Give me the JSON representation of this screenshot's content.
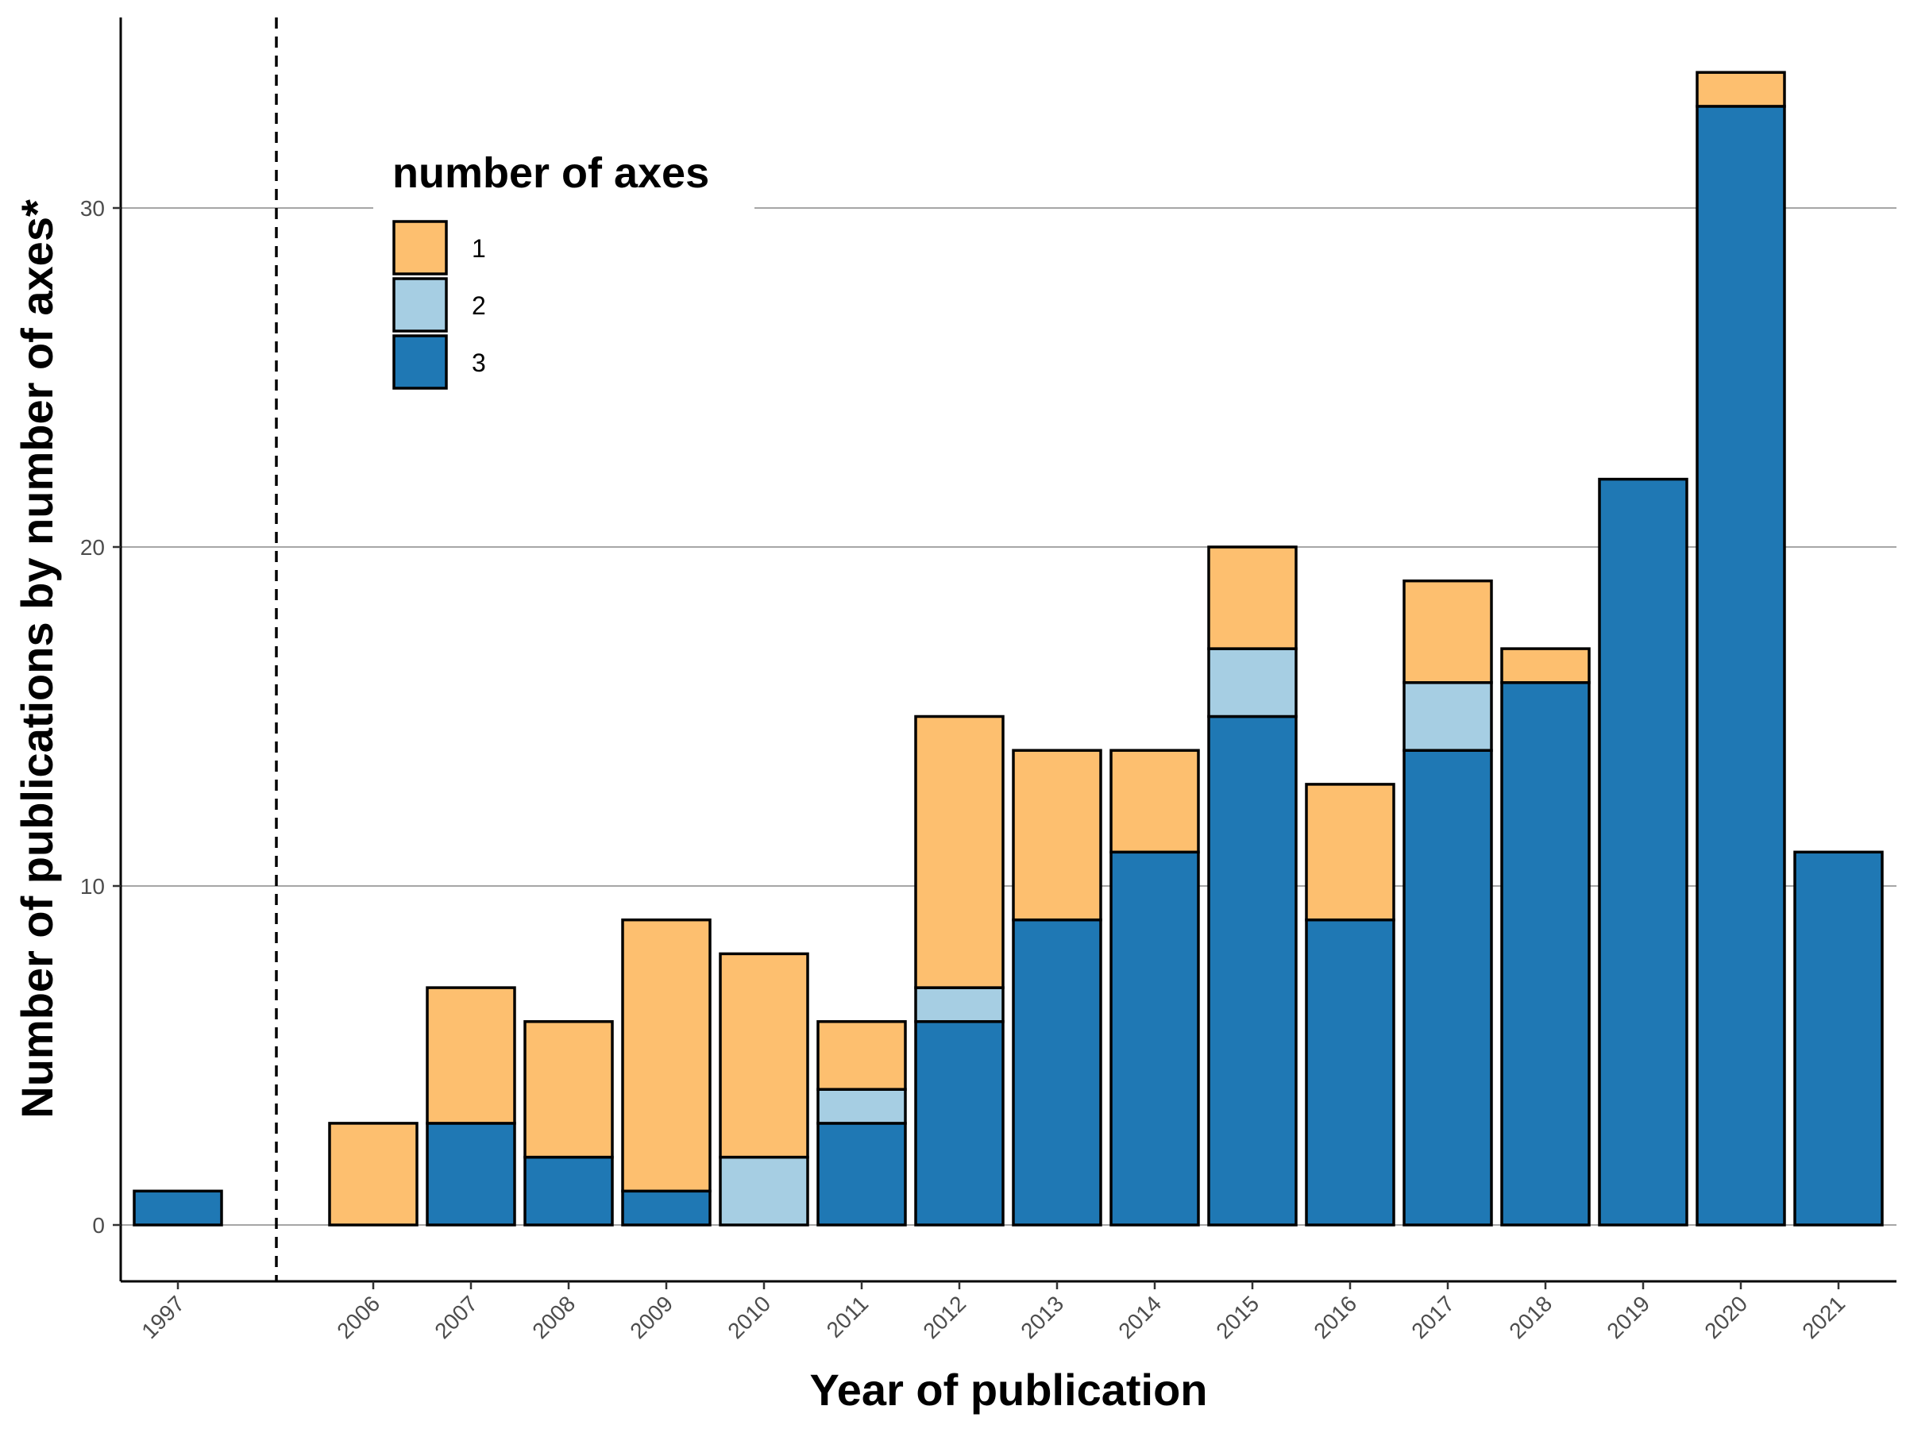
{
  "chart_data": {
    "type": "bar",
    "stacked": true,
    "categories": [
      "1997",
      "2006",
      "2007",
      "2008",
      "2009",
      "2010",
      "2011",
      "2012",
      "2013",
      "2014",
      "2015",
      "2016",
      "2017",
      "2018",
      "2019",
      "2020",
      "2021"
    ],
    "series": [
      {
        "name": "3",
        "color": "#1f78b4",
        "values": [
          1,
          0,
          3,
          2,
          1,
          0,
          3,
          6,
          9,
          11,
          15,
          9,
          14,
          16,
          22,
          33,
          11
        ]
      },
      {
        "name": "2",
        "color": "#a6cee3",
        "values": [
          0,
          0,
          0,
          0,
          0,
          2,
          1,
          1,
          0,
          0,
          2,
          0,
          2,
          0,
          0,
          0,
          0
        ]
      },
      {
        "name": "1",
        "color": "#fdbf6f",
        "values": [
          0,
          3,
          4,
          4,
          8,
          6,
          2,
          8,
          5,
          3,
          3,
          4,
          3,
          1,
          0,
          1,
          0
        ]
      }
    ],
    "legend_order": [
      "1",
      "2",
      "3"
    ],
    "legend_title": "number of axes",
    "legend_position": "top-left",
    "xlabel": "Year of publication",
    "ylabel": "Number of publications by number of axes*",
    "ylim": [
      -1.7,
      36
    ],
    "yticks": [
      0,
      10,
      20,
      30
    ],
    "grid": "horizontal major",
    "break_marker": "dashed vertical line between 1997 and 2006"
  }
}
